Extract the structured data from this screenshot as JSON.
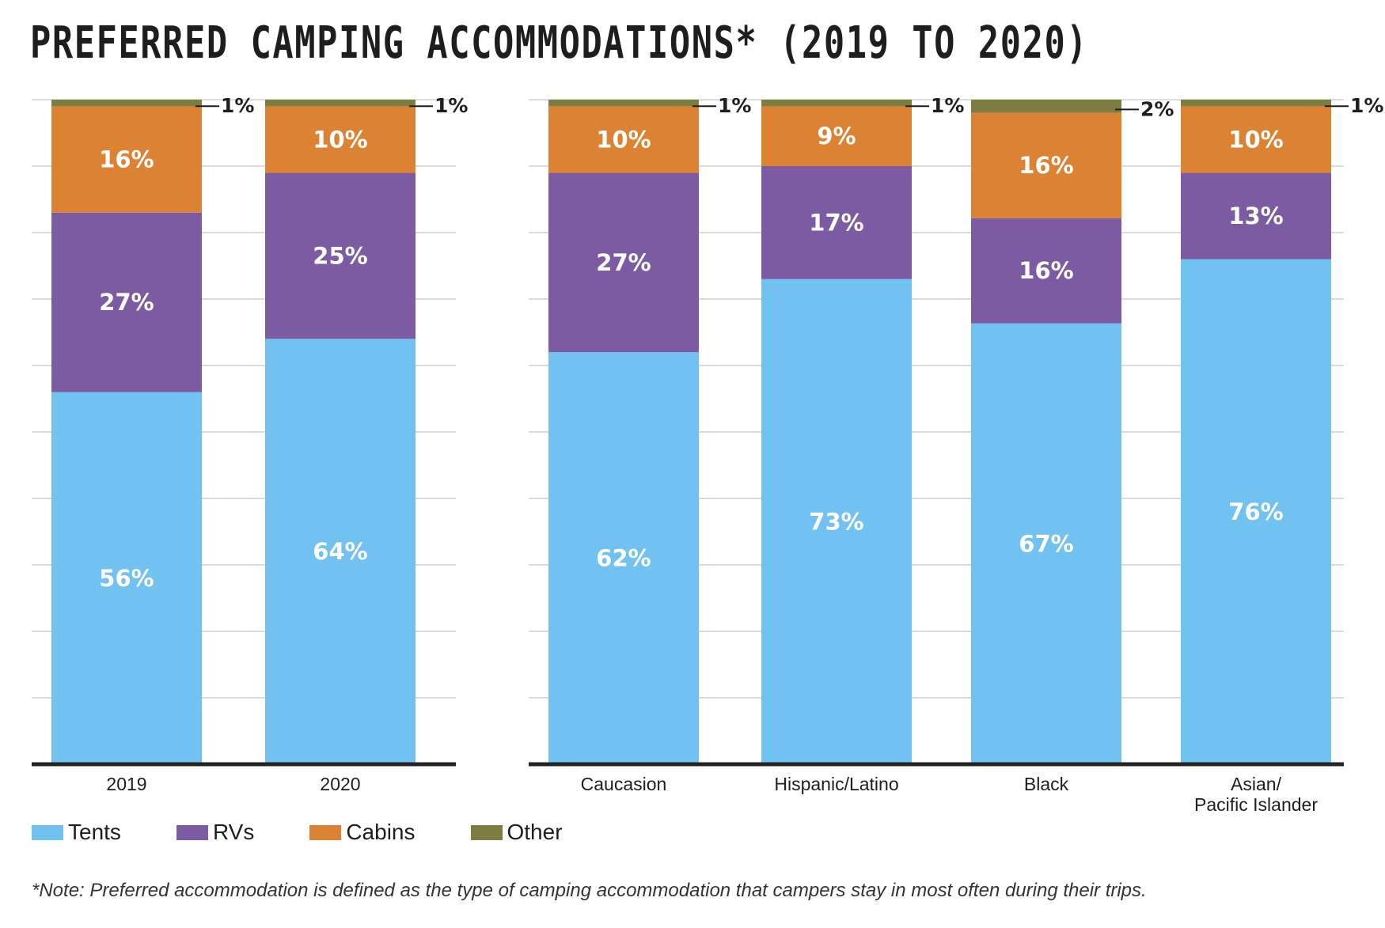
{
  "title": "PREFERRED CAMPING ACCOMMODATIONS* (2019 TO 2020)",
  "note": "*Note: Preferred accommodation is defined as the type of camping accommodation that campers stay in most often during their trips.",
  "colors": {
    "Tents": "#72c2f1",
    "RVs": "#7c5ba2",
    "Cabins": "#db8332",
    "Other": "#7d7d42",
    "grid": "#dcdcdc",
    "axis": "#222222"
  },
  "legend": [
    {
      "name": "Tents",
      "color": "#72c2f1"
    },
    {
      "name": "RVs",
      "color": "#7c5ba2"
    },
    {
      "name": "Cabins",
      "color": "#db8332"
    },
    {
      "name": "Other",
      "color": "#7d7d42"
    }
  ],
  "chart_data": [
    {
      "type": "bar",
      "stacked": true,
      "categories": [
        "2019",
        "2020"
      ],
      "series": [
        {
          "name": "Tents",
          "values": [
            56,
            64
          ],
          "labels": [
            "56%",
            "64%"
          ]
        },
        {
          "name": "RVs",
          "values": [
            27,
            25
          ],
          "labels": [
            "27%",
            "25%"
          ]
        },
        {
          "name": "Cabins",
          "values": [
            16,
            10
          ],
          "labels": [
            "16%",
            "10%"
          ]
        },
        {
          "name": "Other",
          "values": [
            1,
            1
          ],
          "labels": [
            "1%",
            "1%"
          ]
        }
      ],
      "ylim": [
        0,
        100
      ],
      "grid": true,
      "legend_position": "bottom"
    },
    {
      "type": "bar",
      "stacked": true,
      "categories": [
        "Caucasion",
        "Hispanic/Latino",
        "Black",
        "Asian/ Pacific Islander"
      ],
      "category_lines": [
        [
          "Caucasion"
        ],
        [
          "Hispanic/Latino"
        ],
        [
          "Black"
        ],
        [
          "Asian/",
          "Pacific Islander"
        ]
      ],
      "series": [
        {
          "name": "Tents",
          "values": [
            62,
            73,
            67,
            76
          ],
          "labels": [
            "62%",
            "73%",
            "67%",
            "76%"
          ]
        },
        {
          "name": "RVs",
          "values": [
            27,
            17,
            16,
            13
          ],
          "labels": [
            "27%",
            "17%",
            "16%",
            "13%"
          ]
        },
        {
          "name": "Cabins",
          "values": [
            10,
            9,
            16,
            10
          ],
          "labels": [
            "10%",
            "9%",
            "16%",
            "10%"
          ]
        },
        {
          "name": "Other",
          "values": [
            1,
            1,
            2,
            1
          ],
          "labels": [
            "1%",
            "1%",
            "2%",
            "1%"
          ]
        }
      ],
      "ylim": [
        0,
        100
      ],
      "grid": true,
      "legend_position": "bottom"
    }
  ]
}
